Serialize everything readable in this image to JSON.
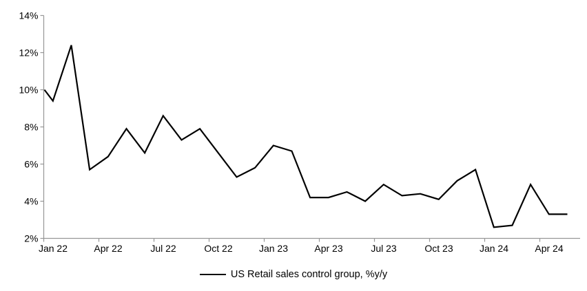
{
  "page": {
    "background_color": "#ffffff"
  },
  "chart_data": {
    "type": "line",
    "title": "",
    "legend": "US Retail sales control group, %y/y",
    "legend_position": "bottom",
    "grid": false,
    "series_color": "#000000",
    "axis_color": "#969696",
    "label_color": "#000000",
    "ylim": [
      2,
      14
    ],
    "y_tick_step": 2,
    "y_tick_labels": [
      "14%",
      "12%",
      "10%",
      "8%",
      "6%",
      "4%",
      "2%"
    ],
    "y_tick_values": [
      14,
      12,
      10,
      8,
      6,
      4,
      2
    ],
    "x_tick_labels": [
      "Jan 22",
      "Apr 22",
      "Jul 22",
      "Oct 22",
      "Jan 23",
      "Apr 23",
      "Jul 23",
      "Oct 23",
      "Jan 24",
      "Apr 24"
    ],
    "x": [
      "Dec 21",
      "Jan 22",
      "Feb 22",
      "Mar 22",
      "Apr 22",
      "May 22",
      "Jun 22",
      "Jul 22",
      "Aug 22",
      "Sep 22",
      "Oct 22",
      "Nov 22",
      "Dec 22",
      "Jan 23",
      "Feb 23",
      "Mar 23",
      "Apr 23",
      "May 23",
      "Jun 23",
      "Jul 23",
      "Aug 23",
      "Sep 23",
      "Oct 23",
      "Nov 23",
      "Dec 23",
      "Jan 24",
      "Feb 24",
      "Mar 24",
      "Apr 24",
      "May 24"
    ],
    "series": [
      {
        "name": "US Retail sales control group, %y/y",
        "values": [
          10.0,
          9.4,
          12.4,
          5.7,
          6.4,
          7.9,
          6.6,
          8.6,
          7.3,
          7.9,
          6.6,
          5.3,
          5.8,
          7.0,
          6.7,
          4.2,
          4.2,
          4.5,
          4.0,
          4.9,
          4.3,
          4.4,
          4.1,
          5.1,
          5.7,
          2.6,
          2.7,
          4.9,
          3.3,
          3.3
        ]
      }
    ]
  }
}
